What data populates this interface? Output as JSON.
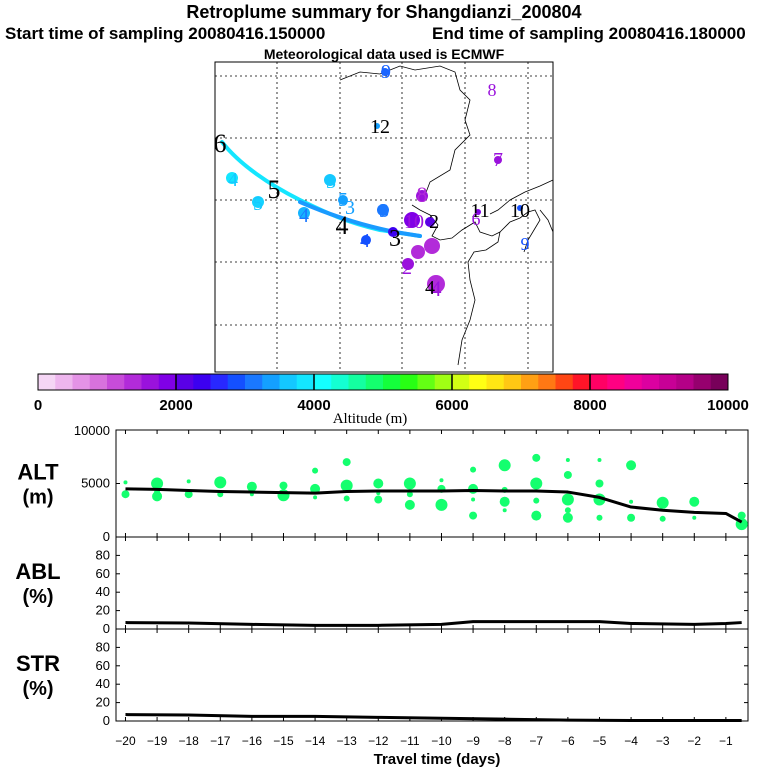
{
  "header": {
    "title": "Retroplume summary for Shangdianzi_200804",
    "start": "Start time of sampling 20080416.150000",
    "end": "End time of sampling 20080416.180000",
    "met": "Meteorological data used is ECMWF"
  },
  "colorbar": {
    "ticks": [
      "0",
      "2000",
      "4000",
      "6000",
      "8000",
      "10000"
    ],
    "label": "Altitude (m)",
    "colors": [
      "#f5d6f5",
      "#eeb6ee",
      "#e493e6",
      "#d872dd",
      "#c74cd9",
      "#b22bd9",
      "#9a12dc",
      "#8000e6",
      "#5a00e6",
      "#3c00f0",
      "#2828ff",
      "#1450ff",
      "#1a78ff",
      "#14a0ff",
      "#14c8ff",
      "#14e6ff",
      "#14ffff",
      "#14ffd2",
      "#14ffa0",
      "#14ff6e",
      "#14ff3c",
      "#28ff14",
      "#64ff14",
      "#a0ff14",
      "#d2ff14",
      "#ffff14",
      "#ffe614",
      "#ffc814",
      "#ffa014",
      "#ff7814",
      "#ff4614",
      "#ff1428",
      "#ff0064",
      "#ff0082",
      "#f0009b",
      "#dc00a0",
      "#c80096",
      "#b40087",
      "#96006e",
      "#78005a"
    ]
  },
  "map_labels": [
    {
      "text": "9",
      "color": "#1a64ff"
    },
    {
      "text": "8",
      "color": "#9a12dc"
    },
    {
      "text": "12",
      "color": "#000000"
    },
    {
      "text": "7",
      "color": "#9a12dc"
    },
    {
      "text": "6",
      "color": "#000000"
    },
    {
      "text": "4",
      "color": "#14c8ff"
    },
    {
      "text": "5",
      "color": "#000000"
    },
    {
      "text": "3",
      "color": "#14c8ff"
    },
    {
      "text": "5",
      "color": "#14c8ff"
    },
    {
      "text": "4",
      "color": "#1a78ff"
    },
    {
      "text": "5",
      "color": "#14a0ff"
    },
    {
      "text": "3",
      "color": "#14a0ff"
    },
    {
      "text": "3",
      "color": "#1a78ff"
    },
    {
      "text": "4",
      "color": "#000000"
    },
    {
      "text": "4",
      "color": "#1450ff"
    },
    {
      "text": "8",
      "color": "#b22bd9"
    },
    {
      "text": "10",
      "color": "#9a12dc"
    },
    {
      "text": "2",
      "color": "#000000"
    },
    {
      "text": "3",
      "color": "#000000"
    },
    {
      "text": "11",
      "color": "#000000"
    },
    {
      "text": "10",
      "color": "#000000"
    },
    {
      "text": "6",
      "color": "#9a12dc"
    },
    {
      "text": "9",
      "color": "#1450ff"
    },
    {
      "text": "2",
      "color": "#9a12dc"
    },
    {
      "text": "4",
      "color": "#9a12dc"
    },
    {
      "text": "4",
      "color": "#000000"
    }
  ],
  "chart_data": [
    {
      "type": "line",
      "name": "ALT",
      "ylabel": "ALT",
      "yunit": "(m)",
      "ylim": [
        0,
        10000
      ],
      "yticks": [
        0,
        5000,
        10000
      ],
      "x": [
        -20,
        -19,
        -18,
        -17,
        -16,
        -15,
        -14,
        -13,
        -12,
        -11,
        -10,
        -9,
        -8,
        -7,
        -6,
        -5,
        -4,
        -3,
        -2,
        -1,
        -0.5
      ],
      "y": [
        4500,
        4450,
        4350,
        4250,
        4200,
        4150,
        4100,
        4250,
        4300,
        4300,
        4300,
        4350,
        4300,
        4300,
        4200,
        3700,
        2800,
        2500,
        2300,
        2200,
        1400
      ],
      "scatter": [
        [
          -20,
          5100
        ],
        [
          -20,
          4000
        ],
        [
          -19,
          5000
        ],
        [
          -19,
          4200
        ],
        [
          -19,
          3800
        ],
        [
          -18,
          5200
        ],
        [
          -18,
          4000
        ],
        [
          -17,
          5100
        ],
        [
          -17,
          4000
        ],
        [
          -16,
          4700
        ],
        [
          -16,
          4000
        ],
        [
          -15,
          4800
        ],
        [
          -15,
          3900
        ],
        [
          -14,
          6200
        ],
        [
          -14,
          4500
        ],
        [
          -14,
          3700
        ],
        [
          -13,
          7000
        ],
        [
          -13,
          4800
        ],
        [
          -13,
          3600
        ],
        [
          -12,
          5000
        ],
        [
          -12,
          4100
        ],
        [
          -12,
          3500
        ],
        [
          -11,
          5000
        ],
        [
          -11,
          4000
        ],
        [
          -11,
          3000
        ],
        [
          -10,
          5300
        ],
        [
          -10,
          4500
        ],
        [
          -10,
          3000
        ],
        [
          -9,
          6300
        ],
        [
          -9,
          4500
        ],
        [
          -9,
          3500
        ],
        [
          -9,
          2000
        ],
        [
          -8,
          6700
        ],
        [
          -8,
          4400
        ],
        [
          -8,
          3300
        ],
        [
          -8,
          2500
        ],
        [
          -7,
          7400
        ],
        [
          -7,
          5000
        ],
        [
          -7,
          3400
        ],
        [
          -7,
          2000
        ],
        [
          -6,
          7200
        ],
        [
          -6,
          5800
        ],
        [
          -6,
          3500
        ],
        [
          -6,
          2500
        ],
        [
          -6,
          1800
        ],
        [
          -5,
          7200
        ],
        [
          -5,
          5000
        ],
        [
          -5,
          3500
        ],
        [
          -5,
          1800
        ],
        [
          -4,
          6700
        ],
        [
          -4,
          3300
        ],
        [
          -4,
          1800
        ],
        [
          -3,
          3200
        ],
        [
          -3,
          1700
        ],
        [
          -2,
          3300
        ],
        [
          -2,
          1800
        ],
        [
          -0.5,
          2000
        ],
        [
          -0.5,
          1200
        ]
      ]
    },
    {
      "type": "line",
      "name": "ABL",
      "ylabel": "ABL",
      "yunit": "(%)",
      "ylim": [
        0,
        100
      ],
      "yticks": [
        0,
        20,
        40,
        60,
        80
      ],
      "x": [
        -20,
        -18,
        -16,
        -14,
        -12,
        -10,
        -9,
        -8,
        -6,
        -5,
        -4,
        -2,
        -1,
        -0.5
      ],
      "y": [
        7,
        6.5,
        5,
        4,
        4,
        5,
        8,
        8,
        8,
        8,
        6,
        5,
        6,
        7
      ]
    },
    {
      "type": "line",
      "name": "STR",
      "ylabel": "STR",
      "yunit": "(%)",
      "ylim": [
        0,
        100
      ],
      "yticks": [
        0,
        20,
        40,
        60,
        80
      ],
      "x": [
        -20,
        -18,
        -16,
        -14,
        -12,
        -10,
        -8,
        -6,
        -4,
        -2,
        -0.5
      ],
      "y": [
        7,
        6.5,
        5,
        5,
        4,
        3,
        2,
        1,
        0.5,
        0.5,
        0.5
      ]
    }
  ],
  "xaxis": {
    "ticks": [
      -20,
      -19,
      -18,
      -17,
      -16,
      -15,
      -14,
      -13,
      -12,
      -11,
      -10,
      -9,
      -8,
      -7,
      -6,
      -5,
      -4,
      -3,
      -2,
      -1
    ],
    "label": "Travel time (days)"
  }
}
